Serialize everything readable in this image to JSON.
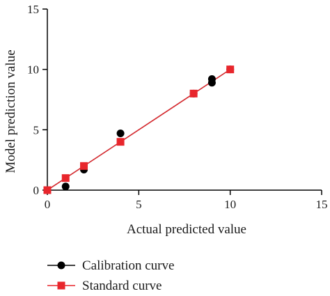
{
  "chart_data": {
    "type": "scatter",
    "xlabel": "Actual predicted value",
    "ylabel": "Model prediction value",
    "xlim": [
      0,
      15
    ],
    "ylim": [
      0,
      15
    ],
    "x_ticks": [
      0,
      5,
      10,
      15
    ],
    "y_ticks": [
      0,
      5,
      10,
      15
    ],
    "x_tick_labels": [
      "0",
      "5",
      "10",
      "15"
    ],
    "y_tick_labels": [
      "0",
      "5",
      "10",
      "15"
    ],
    "grid": false,
    "legend_position": "bottom-left",
    "series": [
      {
        "name": "Calibration curve",
        "marker": "circle",
        "color": "#000000",
        "points": [
          [
            0,
            0
          ],
          [
            1,
            0.3
          ],
          [
            2,
            1.7
          ],
          [
            4,
            4.7
          ],
          [
            8,
            8.0
          ],
          [
            9,
            8.9
          ],
          [
            9,
            9.2
          ],
          [
            10,
            10
          ]
        ],
        "fit_line": [
          [
            0,
            0
          ],
          [
            10,
            10
          ]
        ]
      },
      {
        "name": "Standard curve",
        "marker": "square",
        "color": "#e8262c",
        "points": [
          [
            0,
            0
          ],
          [
            1,
            1
          ],
          [
            2,
            2
          ],
          [
            4,
            4
          ],
          [
            8,
            8
          ],
          [
            10,
            10
          ]
        ],
        "fit_line": [
          [
            0,
            0
          ],
          [
            10,
            10
          ]
        ]
      }
    ]
  }
}
